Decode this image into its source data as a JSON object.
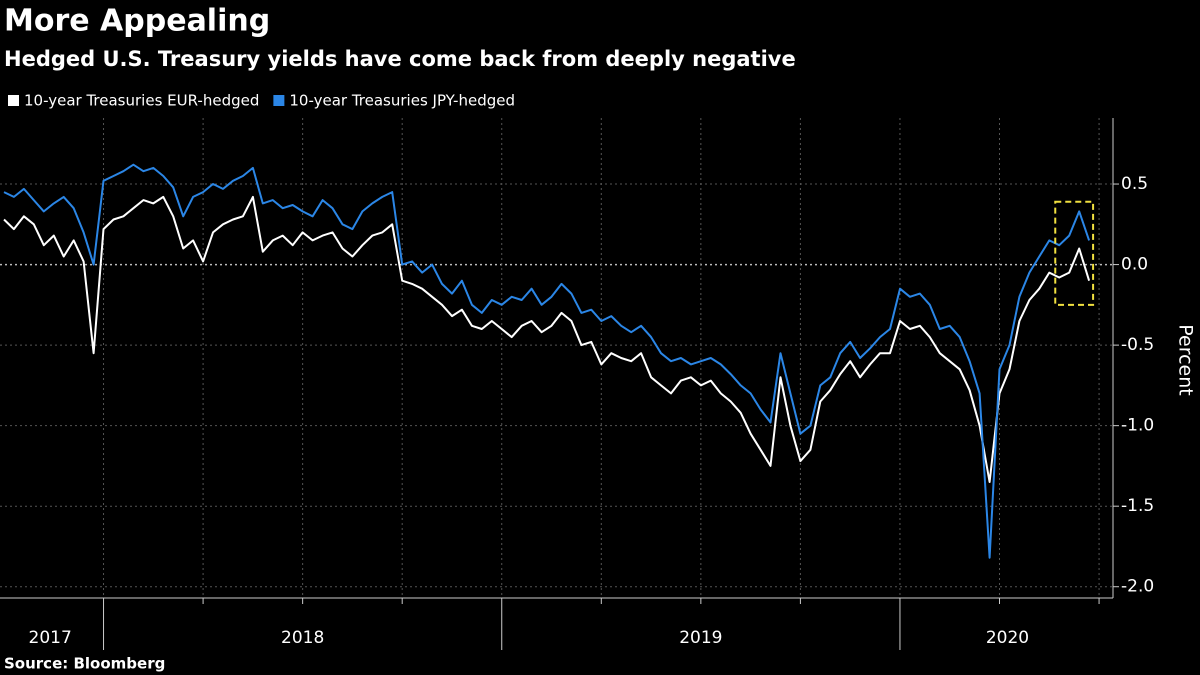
{
  "chart_data": {
    "type": "line",
    "title": "More Appealing",
    "subtitle": "Hedged U.S. Treasury yields have come back from deeply negative",
    "y_label": "Percent",
    "source": "Source: Bloomberg",
    "x": [
      2017.75,
      2017.775,
      2017.8,
      2017.825,
      2017.85,
      2017.875,
      2017.9,
      2017.925,
      2017.95,
      2017.975,
      2018,
      2018.025,
      2018.05,
      2018.075,
      2018.1,
      2018.125,
      2018.15,
      2018.175,
      2018.2,
      2018.225,
      2018.25,
      2018.275,
      2018.3,
      2018.325,
      2018.35,
      2018.375,
      2018.4,
      2018.425,
      2018.45,
      2018.475,
      2018.5,
      2018.525,
      2018.55,
      2018.575,
      2018.6,
      2018.625,
      2018.65,
      2018.675,
      2018.7,
      2018.725,
      2018.75,
      2018.775,
      2018.8,
      2018.825,
      2018.85,
      2018.875,
      2018.9,
      2018.925,
      2018.95,
      2018.975,
      2019,
      2019.025,
      2019.05,
      2019.075,
      2019.1,
      2019.125,
      2019.15,
      2019.175,
      2019.2,
      2019.225,
      2019.25,
      2019.275,
      2019.3,
      2019.325,
      2019.35,
      2019.375,
      2019.4,
      2019.425,
      2019.45,
      2019.475,
      2019.5,
      2019.525,
      2019.55,
      2019.575,
      2019.6,
      2019.625,
      2019.65,
      2019.675,
      2019.7,
      2019.725,
      2019.75,
      2019.775,
      2019.8,
      2019.825,
      2019.85,
      2019.875,
      2019.9,
      2019.925,
      2019.95,
      2019.975,
      2020,
      2020.025,
      2020.05,
      2020.075,
      2020.1,
      2020.125,
      2020.15,
      2020.175,
      2020.2,
      2020.225,
      2020.25,
      2020.275,
      2020.3,
      2020.325,
      2020.35,
      2020.375,
      2020.4,
      2020.425,
      2020.45,
      2020.475
    ],
    "series": [
      {
        "name": "10-year Treasuries EUR-hedged",
        "color": "#ffffff",
        "values": [
          0.28,
          0.22,
          0.3,
          0.25,
          0.12,
          0.18,
          0.05,
          0.15,
          0.02,
          -0.55,
          0.22,
          0.28,
          0.3,
          0.35,
          0.4,
          0.38,
          0.42,
          0.3,
          0.1,
          0.15,
          0.02,
          0.2,
          0.25,
          0.28,
          0.3,
          0.42,
          0.08,
          0.15,
          0.18,
          0.12,
          0.2,
          0.15,
          0.18,
          0.2,
          0.1,
          0.05,
          0.12,
          0.18,
          0.2,
          0.25,
          -0.1,
          -0.12,
          -0.15,
          -0.2,
          -0.25,
          -0.32,
          -0.28,
          -0.38,
          -0.4,
          -0.35,
          -0.4,
          -0.45,
          -0.38,
          -0.35,
          -0.42,
          -0.38,
          -0.3,
          -0.35,
          -0.5,
          -0.48,
          -0.62,
          -0.55,
          -0.58,
          -0.6,
          -0.55,
          -0.7,
          -0.75,
          -0.8,
          -0.72,
          -0.7,
          -0.75,
          -0.72,
          -0.8,
          -0.85,
          -0.92,
          -1.05,
          -1.15,
          -1.25,
          -0.7,
          -1.0,
          -1.22,
          -1.15,
          -0.85,
          -0.78,
          -0.68,
          -0.6,
          -0.7,
          -0.62,
          -0.55,
          -0.55,
          -0.35,
          -0.4,
          -0.38,
          -0.45,
          -0.55,
          -0.6,
          -0.65,
          -0.78,
          -1.0,
          -1.35,
          -0.8,
          -0.65,
          -0.35,
          -0.22,
          -0.15,
          -0.05,
          -0.08,
          -0.05,
          0.1,
          -0.1
        ]
      },
      {
        "name": "10-year Treasuries JPY-hedged",
        "color": "#2b86e6",
        "values": [
          0.45,
          0.42,
          0.47,
          0.4,
          0.33,
          0.38,
          0.42,
          0.35,
          0.2,
          0.0,
          0.52,
          0.55,
          0.58,
          0.62,
          0.58,
          0.6,
          0.55,
          0.48,
          0.3,
          0.42,
          0.45,
          0.5,
          0.47,
          0.52,
          0.55,
          0.6,
          0.38,
          0.4,
          0.35,
          0.37,
          0.33,
          0.3,
          0.4,
          0.35,
          0.25,
          0.22,
          0.33,
          0.38,
          0.42,
          0.45,
          0.0,
          0.02,
          -0.05,
          0.0,
          -0.12,
          -0.18,
          -0.1,
          -0.25,
          -0.3,
          -0.22,
          -0.25,
          -0.2,
          -0.22,
          -0.15,
          -0.25,
          -0.2,
          -0.12,
          -0.18,
          -0.3,
          -0.28,
          -0.35,
          -0.32,
          -0.38,
          -0.42,
          -0.38,
          -0.45,
          -0.55,
          -0.6,
          -0.58,
          -0.62,
          -0.6,
          -0.58,
          -0.62,
          -0.68,
          -0.75,
          -0.8,
          -0.9,
          -0.98,
          -0.55,
          -0.8,
          -1.05,
          -1.0,
          -0.75,
          -0.7,
          -0.55,
          -0.48,
          -0.58,
          -0.52,
          -0.45,
          -0.4,
          -0.15,
          -0.2,
          -0.18,
          -0.25,
          -0.4,
          -0.38,
          -0.45,
          -0.6,
          -0.8,
          -1.82,
          -0.65,
          -0.5,
          -0.2,
          -0.05,
          0.05,
          0.15,
          0.12,
          0.18,
          0.33,
          0.15
        ]
      }
    ],
    "xlim": [
      2017.74,
      2020.535
    ],
    "xticks": [
      {
        "value": 2017.866,
        "label": "2017"
      },
      {
        "value": 2018.5,
        "label": "2018"
      },
      {
        "value": 2019.5,
        "label": "2019"
      },
      {
        "value": 2020.27,
        "label": "2020"
      }
    ],
    "xgrid": [
      2018,
      2018.25,
      2018.5,
      2018.75,
      2019,
      2019.25,
      2019.5,
      2019.75,
      2020,
      2020.25,
      2020.5
    ],
    "ylim": [
      -2.07,
      0.91
    ],
    "yticks": [
      {
        "value": -2,
        "label": "-2.0"
      },
      -1.5,
      {
        "value": -1,
        "label": "-1.0"
      },
      -0.5,
      {
        "value": 0,
        "label": "0.0"
      },
      0.5
    ],
    "grid": true,
    "highlight": {
      "x": [
        2020.39,
        2020.485
      ],
      "y": [
        -0.25,
        0.39
      ],
      "color": "#f0e040"
    }
  }
}
